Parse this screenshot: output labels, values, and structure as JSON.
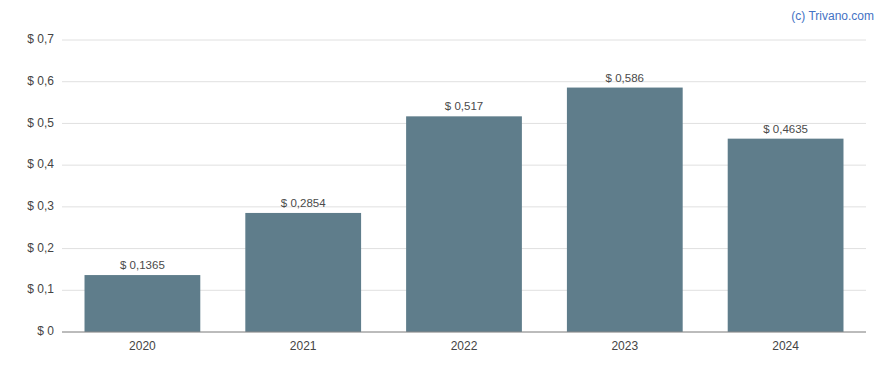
{
  "chart_data": {
    "type": "bar",
    "categories": [
      "2020",
      "2021",
      "2022",
      "2023",
      "2024"
    ],
    "values": [
      0.1365,
      0.2854,
      0.517,
      0.586,
      0.4635
    ],
    "value_labels": [
      "$ 0,1365",
      "$ 0,2854",
      "$ 0,517",
      "$ 0,586",
      "$ 0,4635"
    ],
    "data_labels": true,
    "color": "#5f7d8b",
    "ylim": [
      0,
      0.7
    ],
    "yticks": [
      {
        "value": 0.0,
        "label": "$ 0"
      },
      {
        "value": 0.1,
        "label": "$ 0,1"
      },
      {
        "value": 0.2,
        "label": "$ 0,2"
      },
      {
        "value": 0.3,
        "label": "$ 0,3"
      },
      {
        "value": 0.4,
        "label": "$ 0,4"
      },
      {
        "value": 0.5,
        "label": "$ 0,5"
      },
      {
        "value": 0.6,
        "label": "$ 0,6"
      },
      {
        "value": 0.7,
        "label": "$ 0,7"
      }
    ],
    "grid": true,
    "annotations": [
      {
        "text": "(c) Trivano.com",
        "color": "#4472c4"
      }
    ]
  }
}
